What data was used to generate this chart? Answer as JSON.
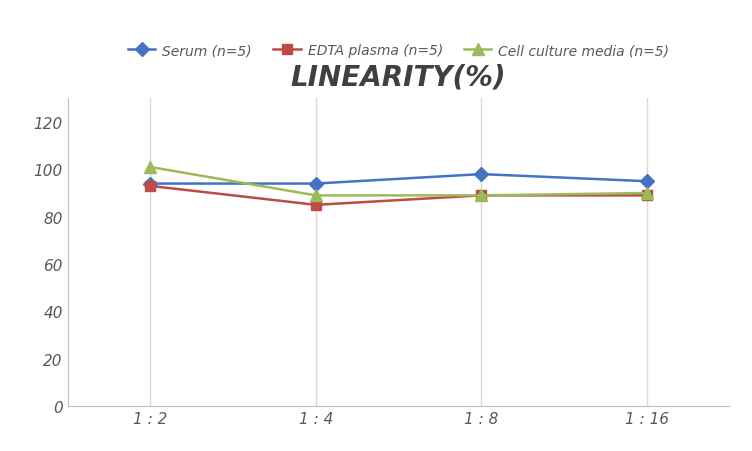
{
  "title": "LINEARITY(%)",
  "x_labels": [
    "1 : 2",
    "1 : 4",
    "1 : 8",
    "1 : 16"
  ],
  "series": [
    {
      "label": "Serum (n=5)",
      "values": [
        94,
        94,
        98,
        95
      ],
      "color": "#4472C4",
      "marker": "D",
      "markersize": 7,
      "linewidth": 1.8
    },
    {
      "label": "EDTA plasma (n=5)",
      "values": [
        93,
        85,
        89,
        89
      ],
      "color": "#BE4B48",
      "marker": "s",
      "markersize": 7,
      "linewidth": 1.8
    },
    {
      "label": "Cell culture media (n=5)",
      "values": [
        101,
        89,
        89,
        90
      ],
      "color": "#9BBB59",
      "marker": "^",
      "markersize": 8,
      "linewidth": 1.8
    }
  ],
  "ylim": [
    0,
    130
  ],
  "yticks": [
    0,
    20,
    40,
    60,
    80,
    100,
    120
  ],
  "grid_color": "#D9D9D9",
  "background_color": "#FFFFFF",
  "title_fontsize": 20,
  "title_fontstyle": "italic",
  "title_fontweight": "bold",
  "title_color": "#404040",
  "legend_fontsize": 10,
  "tick_fontsize": 11,
  "tick_color": "#595959",
  "spine_color": "#BFBFBF"
}
